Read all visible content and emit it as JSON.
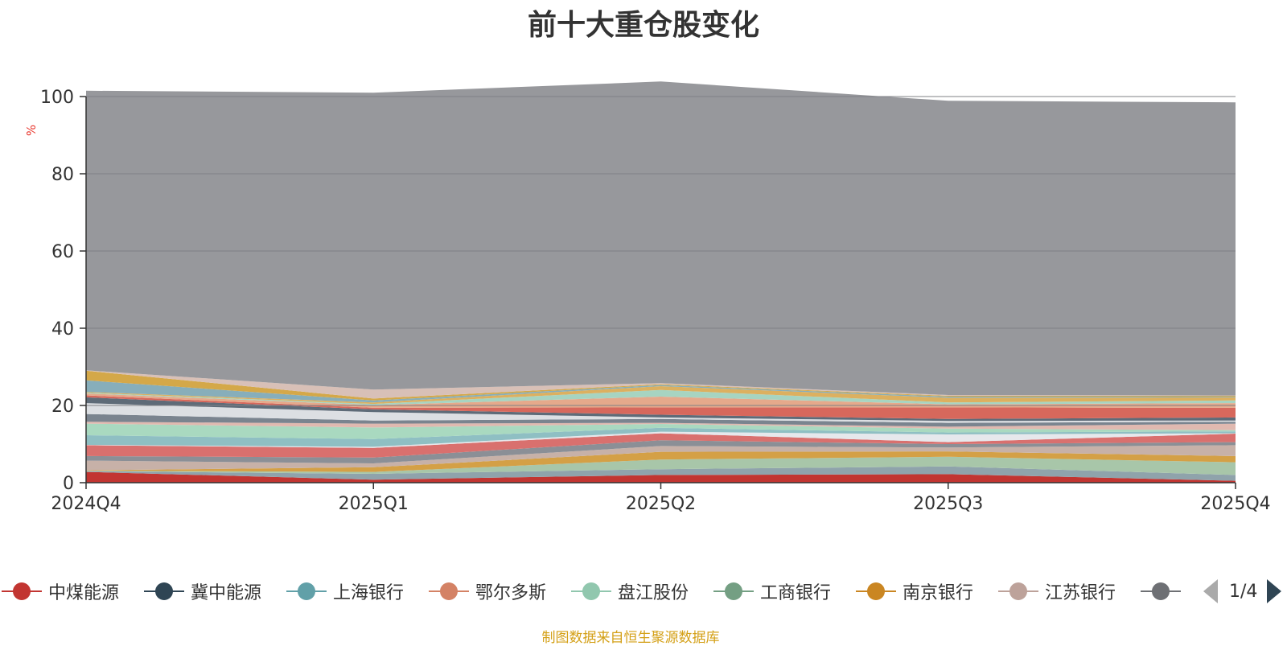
{
  "title": "前十大重仓股变化",
  "source_note": "制图数据来自恒生聚源数据库",
  "pager": "1/4",
  "chart_data": {
    "type": "area",
    "stacked": true,
    "title": "前十大重仓股变化",
    "ylabel": "%",
    "ylim": [
      0,
      100
    ],
    "yticks": [
      0,
      20,
      40,
      60,
      80,
      100
    ],
    "categories": [
      "2024Q4",
      "2025Q1",
      "2025Q2",
      "2025Q3",
      "2025Q4"
    ],
    "series": [
      {
        "name": "中煤能源",
        "color": "#c23531",
        "values": [
          2.8,
          0.8,
          2.0,
          2.2,
          0.5
        ]
      },
      {
        "name": "",
        "color": "#8fa3ab",
        "values": [
          0.2,
          1.5,
          1.5,
          2.0,
          1.5
        ]
      },
      {
        "name": "",
        "color": "#a8c6a9",
        "values": [
          0.1,
          0.5,
          2.5,
          2.5,
          3.3
        ]
      },
      {
        "name": "",
        "color": "#d4a046",
        "values": [
          0.1,
          1.2,
          2.0,
          1.4,
          1.6
        ]
      },
      {
        "name": "",
        "color": "#c7b1a8",
        "values": [
          2.5,
          1.0,
          1.5,
          1.0,
          2.8
        ]
      },
      {
        "name": "",
        "color": "#8b8f96",
        "values": [
          1.2,
          1.5,
          1.5,
          0.9,
          0.8
        ]
      },
      {
        "name": "",
        "color": "#d9706e",
        "values": [
          2.8,
          2.5,
          1.8,
          0.5,
          2.2
        ]
      },
      {
        "name": "",
        "color": "#e6e8ec",
        "values": [
          0.1,
          0.3,
          0.4,
          2.0,
          0.1
        ]
      },
      {
        "name": "",
        "color": "#8fbfc3",
        "values": [
          2.5,
          2.0,
          1.0,
          0.5,
          0.5
        ]
      },
      {
        "name": "",
        "color": "#a9d9c0",
        "values": [
          3.0,
          3.0,
          1.0,
          1.0,
          0.3
        ]
      },
      {
        "name": "",
        "color": "#e0b9b0",
        "values": [
          0.5,
          1.0,
          0.3,
          0.5,
          1.7
        ]
      },
      {
        "name": "",
        "color": "#7a848f",
        "values": [
          2.0,
          0.8,
          1.0,
          1.0,
          0.5
        ]
      },
      {
        "name": "",
        "color": "#dcdfe3",
        "values": [
          2.8,
          2.2,
          0.4,
          0.5,
          0.3
        ]
      },
      {
        "name": "",
        "color": "#5e6b78",
        "values": [
          1.5,
          0.7,
          0.7,
          0.5,
          0.8
        ]
      },
      {
        "name": "",
        "color": "#d7685c",
        "values": [
          0.5,
          0.4,
          1.9,
          3.0,
          2.5
        ]
      },
      {
        "name": "",
        "color": "#e5a98b",
        "values": [
          0.5,
          0.7,
          2.8,
          0.8,
          1.2
        ]
      },
      {
        "name": "",
        "color": "#a7d4c1",
        "values": [
          0.2,
          0.3,
          1.7,
          0.5,
          0.7
        ]
      },
      {
        "name": "",
        "color": "#dcb060",
        "values": [
          0.2,
          0.4,
          1.0,
          1.2,
          0.8
        ]
      },
      {
        "name": "",
        "color": "#87aeba",
        "values": [
          3.0,
          0.5,
          0.3,
          0.3,
          0.2
        ]
      },
      {
        "name": "",
        "color": "#d4a849",
        "values": [
          2.5,
          0.5,
          0.2,
          0.2,
          0.2
        ]
      },
      {
        "name": "",
        "color": "#d8c0b7",
        "values": [
          0.1,
          2.3,
          0.3,
          0.2,
          0.1
        ]
      },
      {
        "name": "",
        "color": "#97989c",
        "values": [
          72.4,
          76.9,
          78.1,
          76.2,
          75.9
        ]
      }
    ]
  },
  "legend": {
    "items": [
      {
        "label": "中煤能源",
        "color": "#c23531"
      },
      {
        "label": "冀中能源",
        "color": "#2f4554"
      },
      {
        "label": "上海银行",
        "color": "#61a0a8"
      },
      {
        "label": "鄂尔多斯",
        "color": "#d48265"
      },
      {
        "label": "盘江股份",
        "color": "#91c7ae"
      },
      {
        "label": "工商银行",
        "color": "#749f83"
      },
      {
        "label": "南京银行",
        "color": "#ca8622"
      },
      {
        "label": "江苏银行",
        "color": "#bda29a"
      },
      {
        "label": "",
        "color": "#6e7074"
      }
    ]
  }
}
